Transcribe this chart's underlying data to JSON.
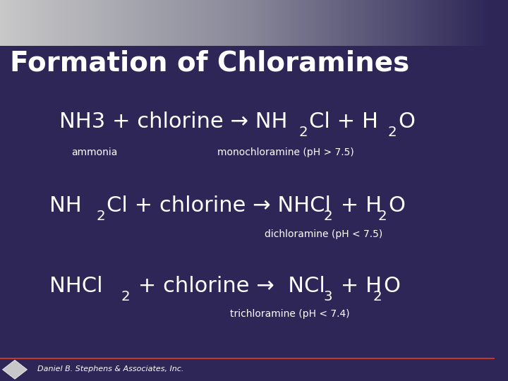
{
  "title": "Formation of Chloramines",
  "background_color": "#2D2657",
  "header_gradient_top": "#A0A0A0",
  "header_gradient_bottom": "#2D2657",
  "title_color": "#FFFFFF",
  "text_color": "#FFFFFF",
  "footer_text": "Daniel B. Stephens & Associates, Inc.",
  "footer_line_color": "#C0392B",
  "title_fontsize": 28,
  "eq1_main": "NH3 + chlorine → NH",
  "eq1_sub2": "2",
  "eq1_end": "Cl + H",
  "eq1_sub3": "2",
  "eq1_o": "O",
  "eq1_label_left": "ammonia",
  "eq1_label_right": "monochloramine (pH > 7.5)",
  "eq2_main": "NH",
  "eq2_sub1": "2",
  "eq2_mid": "Cl + chlorine → NHCl",
  "eq2_sub2": "2",
  "eq2_end": " + H",
  "eq2_sub3": "2",
  "eq2_o": "O",
  "eq2_label": "dichloramine (pH < 7.5)",
  "eq3_main": "NHCl",
  "eq3_sub1": "2",
  "eq3_mid": " + chlorine →  NCl",
  "eq3_sub2": "3",
  "eq3_end": " + H",
  "eq3_sub3": "2",
  "eq3_o": "O",
  "eq3_label": "trichloramine (pH < 7.4)"
}
